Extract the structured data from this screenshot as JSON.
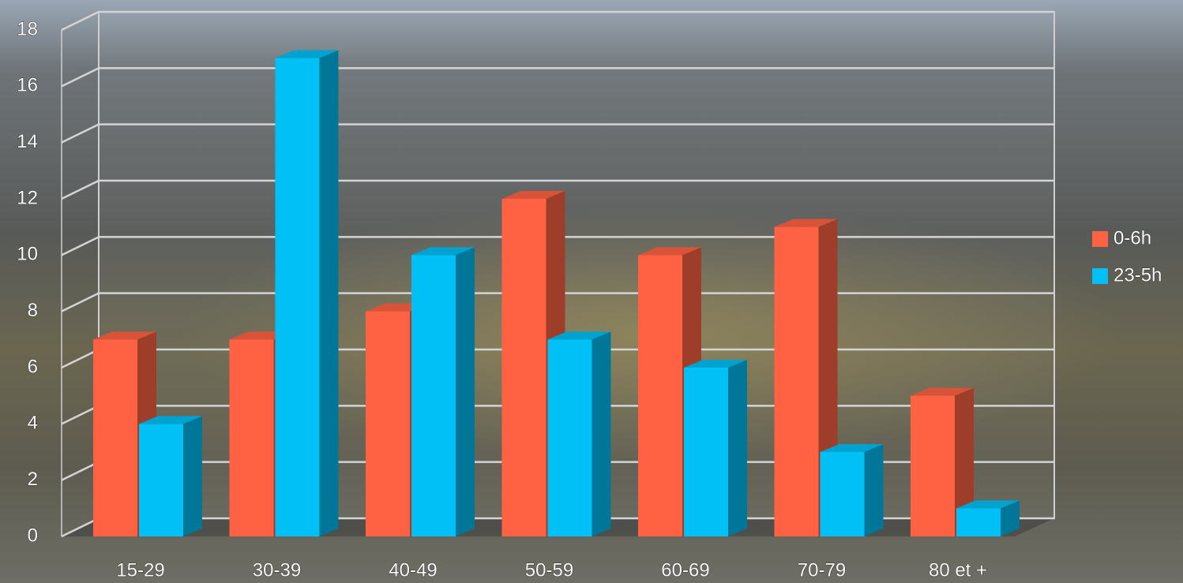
{
  "chart_data": {
    "type": "bar3d",
    "categories": [
      "15-29",
      "30-39",
      "40-49",
      "50-59",
      "60-69",
      "70-79",
      "80 et +"
    ],
    "series": [
      {
        "name": "0-6h",
        "color": "#ff6242",
        "values": [
          7,
          7,
          8,
          12,
          10,
          11,
          5
        ]
      },
      {
        "name": "23-5h",
        "color": "#00c0f5",
        "values": [
          4,
          17,
          10,
          7,
          6,
          3,
          1
        ]
      }
    ],
    "ylim": [
      0,
      18
    ],
    "yticks": [
      0,
      2,
      4,
      6,
      8,
      10,
      12,
      14,
      16,
      18
    ],
    "grid": true,
    "legend": "right"
  }
}
